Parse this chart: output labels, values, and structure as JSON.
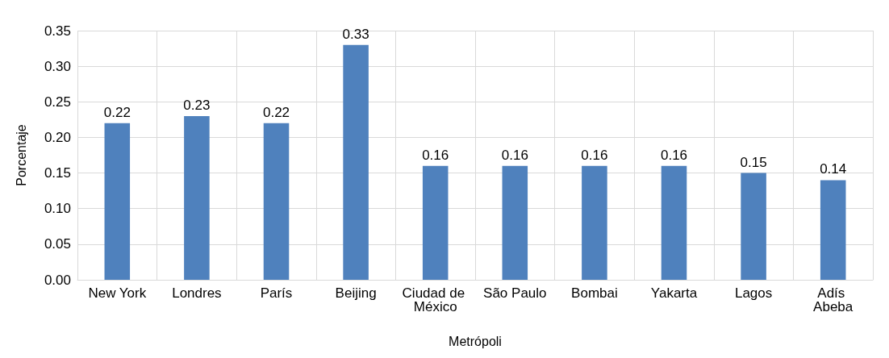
{
  "chart_data": {
    "type": "bar",
    "xlabel": "Metrópoli",
    "ylabel": "Porcentaje",
    "categories": [
      "New York",
      "Londres",
      "París",
      "Beijing",
      "Ciudad de México",
      "São Paulo",
      "Bombai",
      "Yakarta",
      "Lagos",
      "Adís Abeba"
    ],
    "values": [
      0.22,
      0.23,
      0.22,
      0.33,
      0.16,
      0.16,
      0.16,
      0.16,
      0.15,
      0.14
    ],
    "color": "#4f81bd",
    "ylim": [
      0,
      0.35
    ],
    "yticks": [
      {
        "value": 0,
        "label": "0.00"
      },
      0.05,
      {
        "value": 0.1,
        "label": "0.10"
      },
      0.15,
      {
        "value": 0.2,
        "label": "0.20"
      },
      0.25,
      {
        "value": 0.3,
        "label": "0.30"
      },
      0.35
    ],
    "grid": true,
    "data_labels": true
  }
}
